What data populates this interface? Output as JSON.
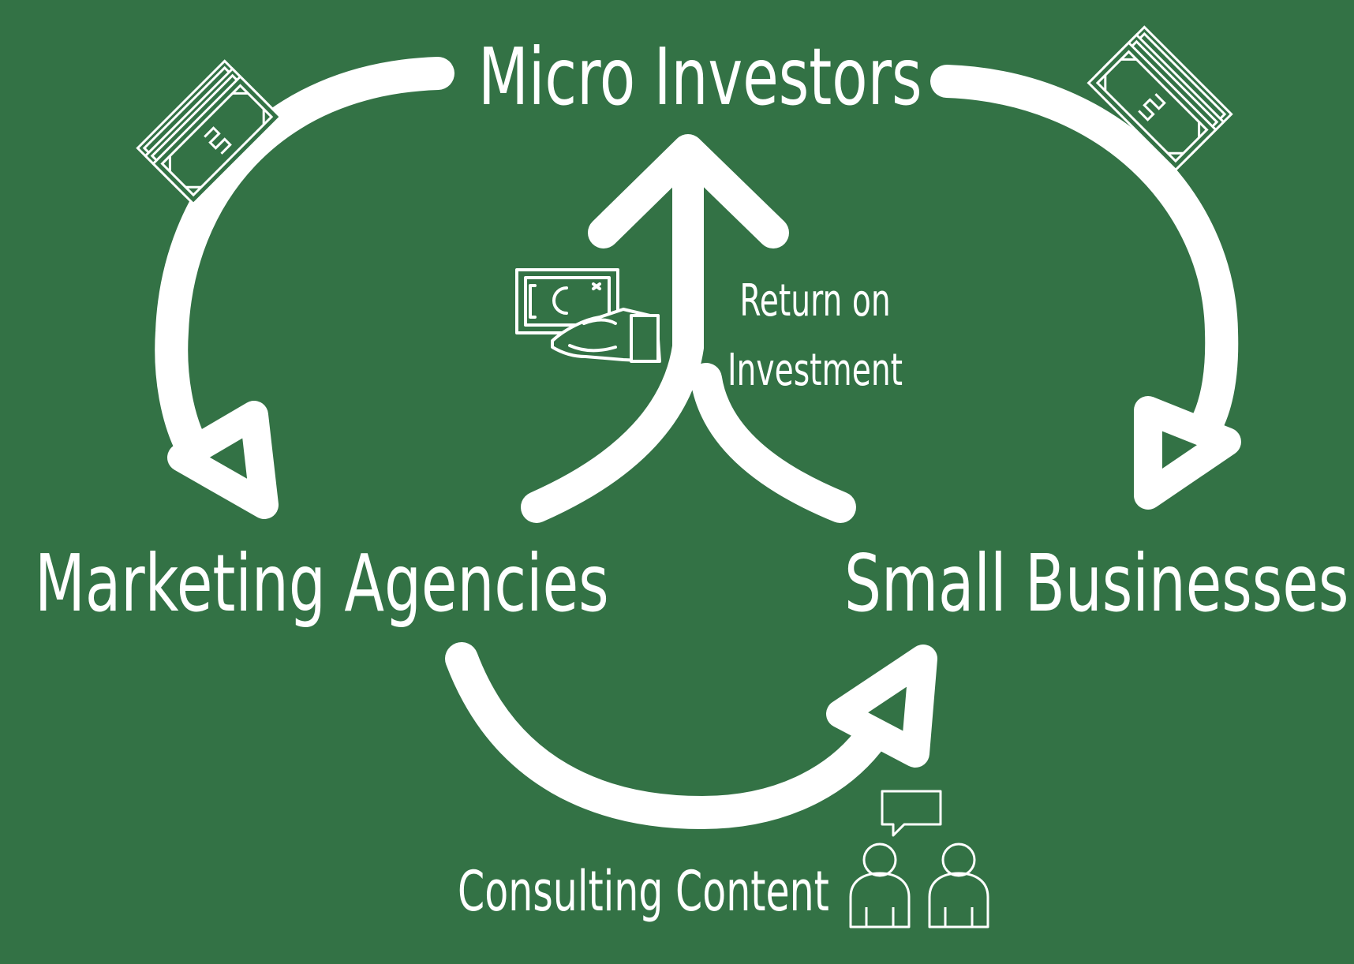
{
  "diagram": {
    "colors": {
      "background": "#337245",
      "foreground": "#ffffff"
    },
    "nodes": {
      "micro_investors": "Micro Investors",
      "marketing_agencies": "Marketing Agencies",
      "small_businesses": "Small Businesses"
    },
    "flows": {
      "consulting_content": "Consulting Content",
      "return_line1": "Return on",
      "return_line2": "Investment"
    },
    "icons": [
      "money-stack-icon-left",
      "money-stack-icon-right",
      "cash-in-hand-icon",
      "consulting-people-icon"
    ]
  }
}
